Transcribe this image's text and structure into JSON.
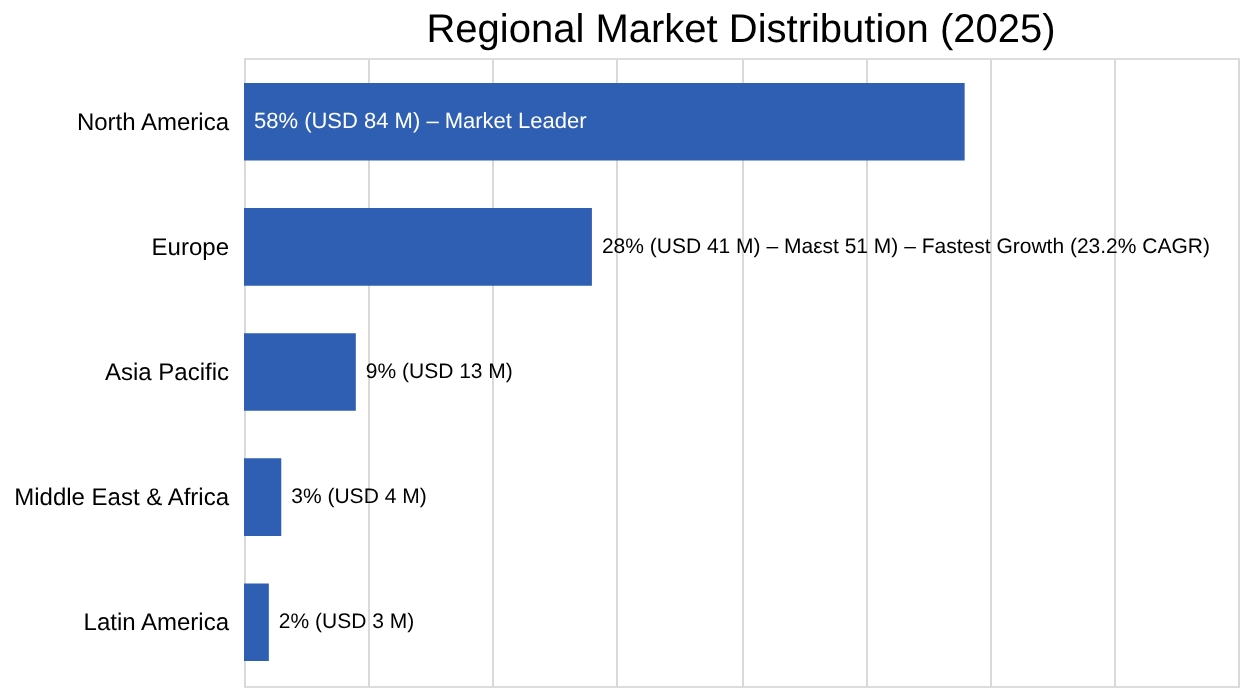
{
  "chart_data": {
    "type": "bar",
    "orientation": "horizontal",
    "title": "Regional Market Distribution (2025)",
    "categories": [
      "North America",
      "Europe",
      "Asia Pacific",
      "Middle East & Africa",
      "Latin America"
    ],
    "values": [
      58,
      28,
      9,
      3,
      2
    ],
    "value_labels": [
      "58% (USD 84 M) – Market Leader",
      "28% (USD 41 M) – Maεst 51 M) – Fastest Growth (23.2% CAGR)",
      "9% (USD 13 M)",
      "3% (USD 4 M)",
      "2% (USD 3 M)"
    ],
    "color": "#2e5fb3",
    "xlim": [
      0,
      80
    ],
    "xticks": [
      {
        "value": 0,
        "label": null
      },
      {
        "value": 10,
        "label": null
      },
      {
        "value": 20,
        "label": null
      },
      {
        "value": 30,
        "label": null
      },
      {
        "value": 40,
        "label": null
      },
      {
        "value": 50,
        "label": null
      },
      {
        "value": 60,
        "label": null
      },
      {
        "value": 70,
        "label": null
      },
      {
        "value": 80,
        "label": null
      }
    ],
    "grid": "x",
    "tick_labels": "y"
  }
}
